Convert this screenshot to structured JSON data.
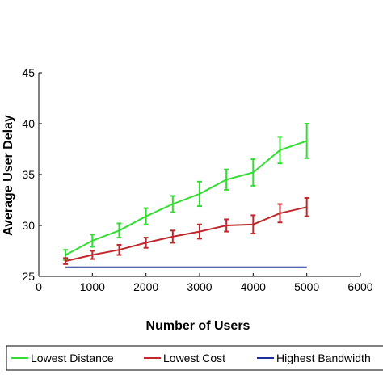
{
  "chart_data": {
    "type": "line",
    "title": "",
    "xlabel": "Number of Users",
    "ylabel": "Average User Delay",
    "xlim": [
      0,
      6000
    ],
    "ylim": [
      25,
      45
    ],
    "xticks": [
      0,
      1000,
      2000,
      3000,
      4000,
      5000,
      6000
    ],
    "yticks": [
      25,
      30,
      35,
      40,
      45
    ],
    "grid": false,
    "legend_position": "bottom",
    "series": [
      {
        "name": "Lowest Distance",
        "color": "#33dd33",
        "x": [
          500,
          1000,
          1500,
          2000,
          2500,
          3000,
          3500,
          4000,
          4500,
          5000
        ],
        "y": [
          27.1,
          28.5,
          29.5,
          30.9,
          32.1,
          33.1,
          34.5,
          35.2,
          37.4,
          38.3
        ],
        "err": [
          0.5,
          0.6,
          0.7,
          0.8,
          0.8,
          1.2,
          1.0,
          1.3,
          1.3,
          1.7
        ]
      },
      {
        "name": "Lowest Cost",
        "color": "#c0282d",
        "x": [
          500,
          1000,
          1500,
          2000,
          2500,
          3000,
          3500,
          4000,
          4500,
          5000
        ],
        "y": [
          26.5,
          27.1,
          27.6,
          28.3,
          28.9,
          29.4,
          30.0,
          30.1,
          31.2,
          31.8
        ],
        "err": [
          0.3,
          0.4,
          0.5,
          0.5,
          0.6,
          0.7,
          0.6,
          0.9,
          0.9,
          0.9
        ]
      },
      {
        "name": "Highest Bandwidth",
        "color": "#1f2f9a",
        "x": [
          500,
          5000
        ],
        "y": [
          25.9,
          25.9
        ],
        "err": [
          0,
          0
        ]
      }
    ]
  },
  "legend": {
    "items": [
      "Lowest Distance",
      "Lowest Cost",
      "Highest Bandwidth"
    ]
  }
}
